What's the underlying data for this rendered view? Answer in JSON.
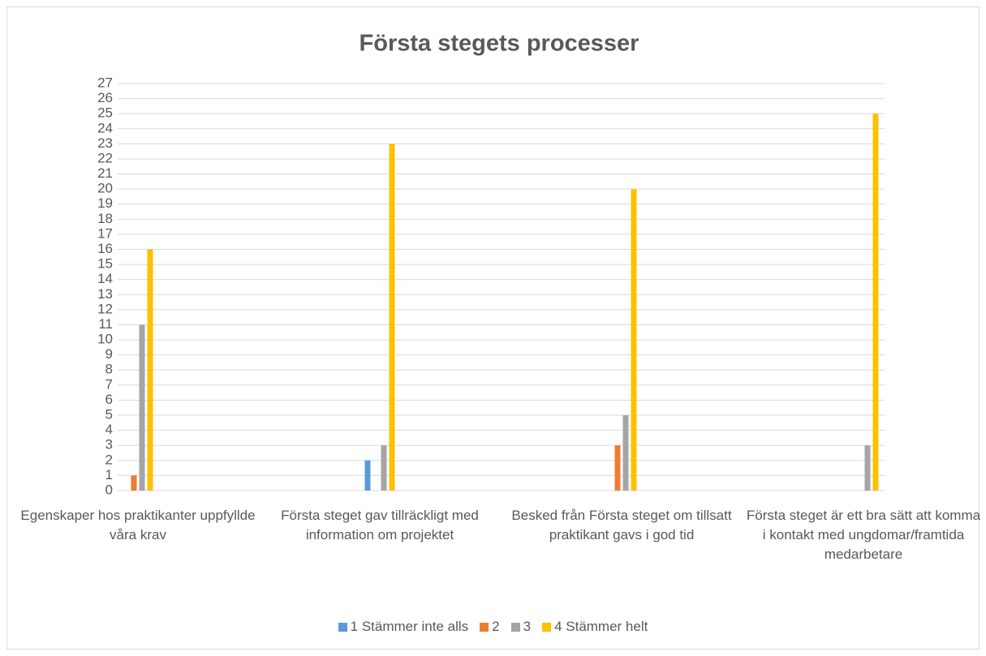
{
  "chart_data": {
    "type": "bar",
    "title": "Första stegets processer",
    "categories": [
      "Egenskaper hos praktikanter uppfyllde våra krav",
      "Första steget gav tillräckligt med information om projektet",
      "Besked från Första steget om tillsatt praktikant gavs i god tid",
      "Första steget är ett bra sätt att komma i kontakt med ungdomar/framtida medarbetare"
    ],
    "series": [
      {
        "name": "1 Stämmer inte alls",
        "color": "#5b9bd5",
        "values": [
          0,
          2,
          0,
          0
        ]
      },
      {
        "name": "2",
        "color": "#ed7d31",
        "values": [
          1,
          0,
          3,
          0
        ]
      },
      {
        "name": "3",
        "color": "#a5a5a5",
        "values": [
          11,
          3,
          5,
          3
        ]
      },
      {
        "name": "4 Stämmer helt",
        "color": "#ffc000",
        "values": [
          16,
          23,
          20,
          25
        ]
      }
    ],
    "ylim": [
      0,
      27
    ],
    "yticks": [
      0,
      1,
      2,
      3,
      4,
      5,
      6,
      7,
      8,
      9,
      10,
      11,
      12,
      13,
      14,
      15,
      16,
      17,
      18,
      19,
      20,
      21,
      22,
      23,
      24,
      25,
      26,
      27
    ],
    "grid": true,
    "legend": "bottom"
  }
}
